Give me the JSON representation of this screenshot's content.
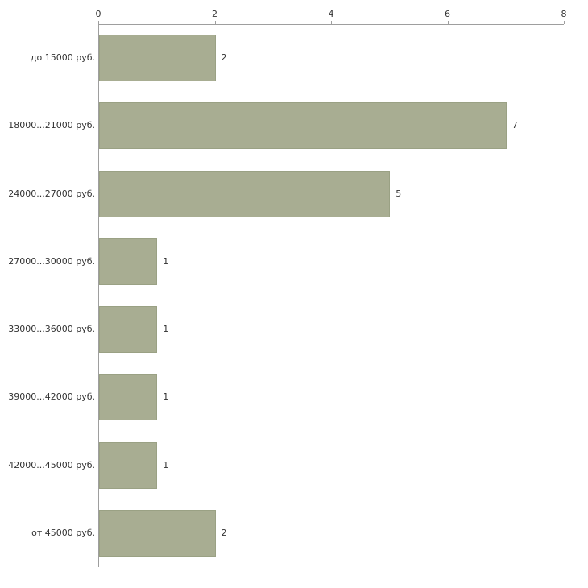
{
  "chart_data": {
    "type": "bar",
    "orientation": "horizontal",
    "title": "",
    "xlabel": "",
    "ylabel": "",
    "categories": [
      "до 15000 руб.",
      "18000...21000 руб.",
      "24000...27000 руб.",
      "27000...30000 руб.",
      "33000...36000 руб.",
      "39000...42000 руб.",
      "42000...45000 руб.",
      "от 45000 руб."
    ],
    "values": [
      2,
      7,
      5,
      1,
      1,
      1,
      1,
      2
    ],
    "value_labels": [
      "2",
      "7",
      "5",
      "1",
      "1",
      "1",
      "1",
      "2"
    ],
    "xlim": [
      0,
      8
    ],
    "x_ticks": [
      "0",
      "2",
      "4",
      "6",
      "8"
    ],
    "x_tick_values": [
      0,
      2,
      4,
      6,
      8
    ],
    "grid": false,
    "legend_position": "none",
    "colors": {
      "bar_fill": "#a8ad92",
      "bar_border": "#9aa184",
      "axis": "#9e9e9e",
      "text": "#333333",
      "background": "#ffffff"
    }
  }
}
